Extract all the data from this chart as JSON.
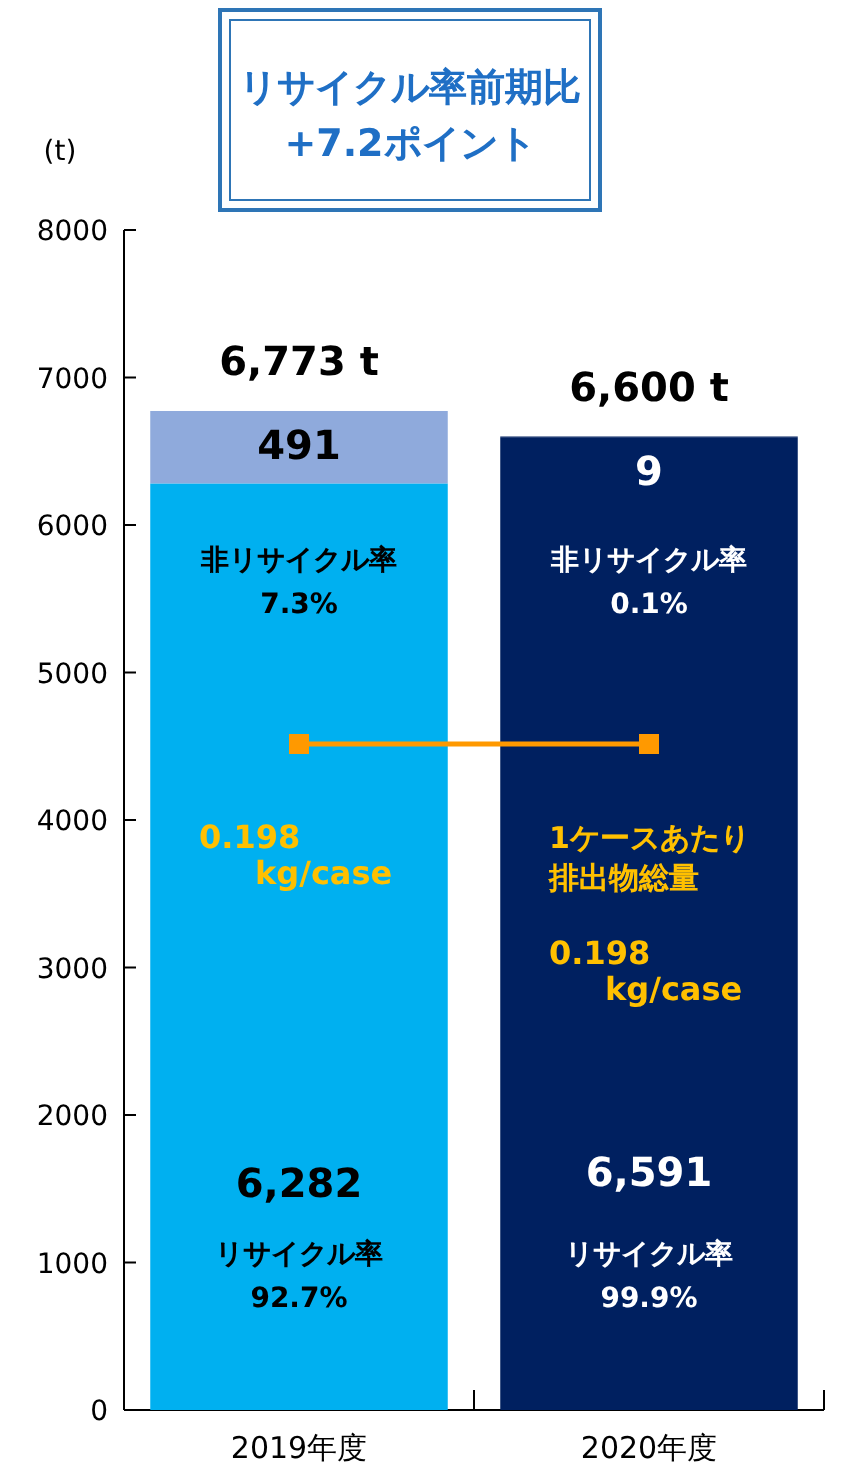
{
  "chart_data": {
    "type": "bar",
    "stacked": true,
    "title": "リサイクル率前期比\n+7.2ポイント",
    "ylabel": "(t)",
    "categories": [
      "2019年度",
      "2020年度"
    ],
    "series": [
      {
        "type": "bar",
        "colors": [
          "#00b0f0",
          "#002060"
        ],
        "values": [
          6282,
          6591
        ],
        "value_labels": [
          "6,282",
          "6,591"
        ]
      },
      {
        "type": "bar",
        "colors": [
          "#8faadc",
          "#002060"
        ],
        "values": [
          491,
          9
        ],
        "value_labels": [
          "491",
          "9"
        ]
      }
    ],
    "totals": [
      "6,773 t",
      "6,600 t"
    ],
    "ylim": [
      0,
      8000
    ],
    "yticks": [
      0,
      1000,
      2000,
      3000,
      4000,
      5000,
      6000,
      7000,
      8000
    ],
    "annotations": [
      "リサイクル率\n92.7%",
      "リサイクル率\n99.9%",
      "非リサイクル率\n7.3%",
      "非リサイクル率\n0.1%",
      "0.198\nkg/case",
      "0.198\nkg/case",
      "1ケースあたり排出物総量"
    ]
  }
}
